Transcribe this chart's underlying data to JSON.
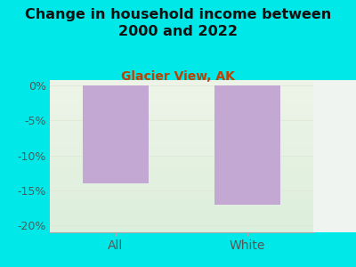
{
  "categories": [
    "All",
    "White"
  ],
  "values": [
    -14.0,
    -17.0
  ],
  "bar_color": "#c4a8d4",
  "title": "Change in household income between\n2000 and 2022",
  "subtitle": "Glacier View, AK",
  "subtitle_color": "#c04000",
  "ylim": [
    -21,
    0.8
  ],
  "yticks": [
    0,
    -5,
    -10,
    -15,
    -20
  ],
  "ytick_labels": [
    "0%",
    "-5%",
    "-10%",
    "-15%",
    "-20%"
  ],
  "background_outer": "#00e8e8",
  "background_inner_top": "#eef4e8",
  "background_inner_bottom": "#ddeedd",
  "grid_color": "#e0e8d8",
  "title_fontsize": 11.5,
  "subtitle_fontsize": 10,
  "bar_width": 0.5,
  "tick_color": "#888888",
  "tick_fontsize": 9,
  "xtick_fontsize": 10
}
